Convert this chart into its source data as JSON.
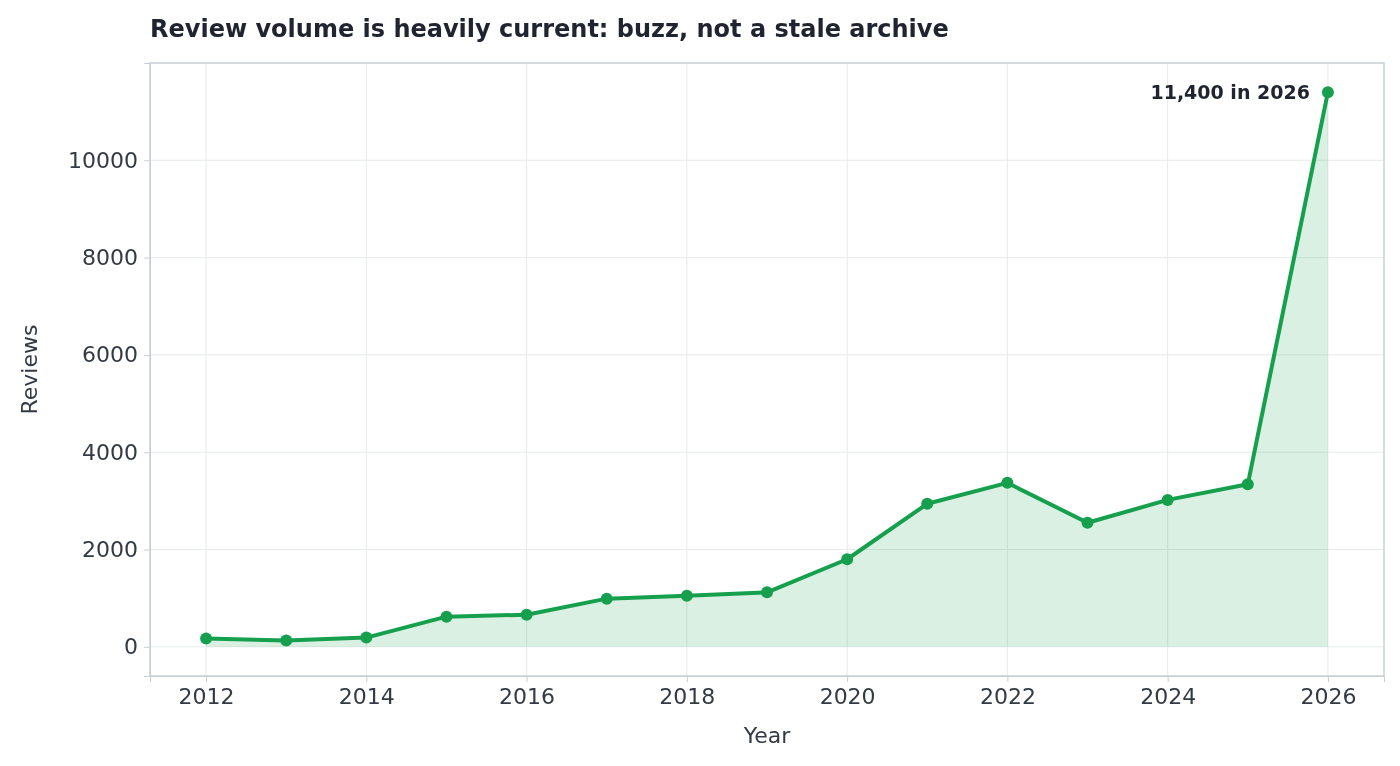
{
  "chart_data": {
    "type": "area",
    "title": "Review volume is heavily current: buzz, not a stale archive",
    "xlabel": "Year",
    "ylabel": "Reviews",
    "x": [
      2012,
      2013,
      2014,
      2015,
      2016,
      2017,
      2018,
      2019,
      2020,
      2021,
      2022,
      2023,
      2024,
      2025,
      2026
    ],
    "series": [
      {
        "color": "#16a04e",
        "values": [
          170,
          130,
          190,
          620,
          660,
          990,
          1050,
          1120,
          1800,
          2940,
          3370,
          2550,
          3020,
          3340,
          11400
        ]
      }
    ],
    "xlim": [
      2011.3,
      2026.7
    ],
    "xticks": [
      2012,
      2014,
      2016,
      2018,
      2020,
      2022,
      2024,
      2026
    ],
    "ylim": [
      -600,
      12000
    ],
    "yticks": [
      0,
      2000,
      4000,
      6000,
      8000,
      10000
    ],
    "grid": true,
    "marker": "circle",
    "line_style": "solid",
    "annotations": [
      {
        "text": "11,400 in 2026",
        "x": 2026,
        "y": 11400
      }
    ]
  }
}
